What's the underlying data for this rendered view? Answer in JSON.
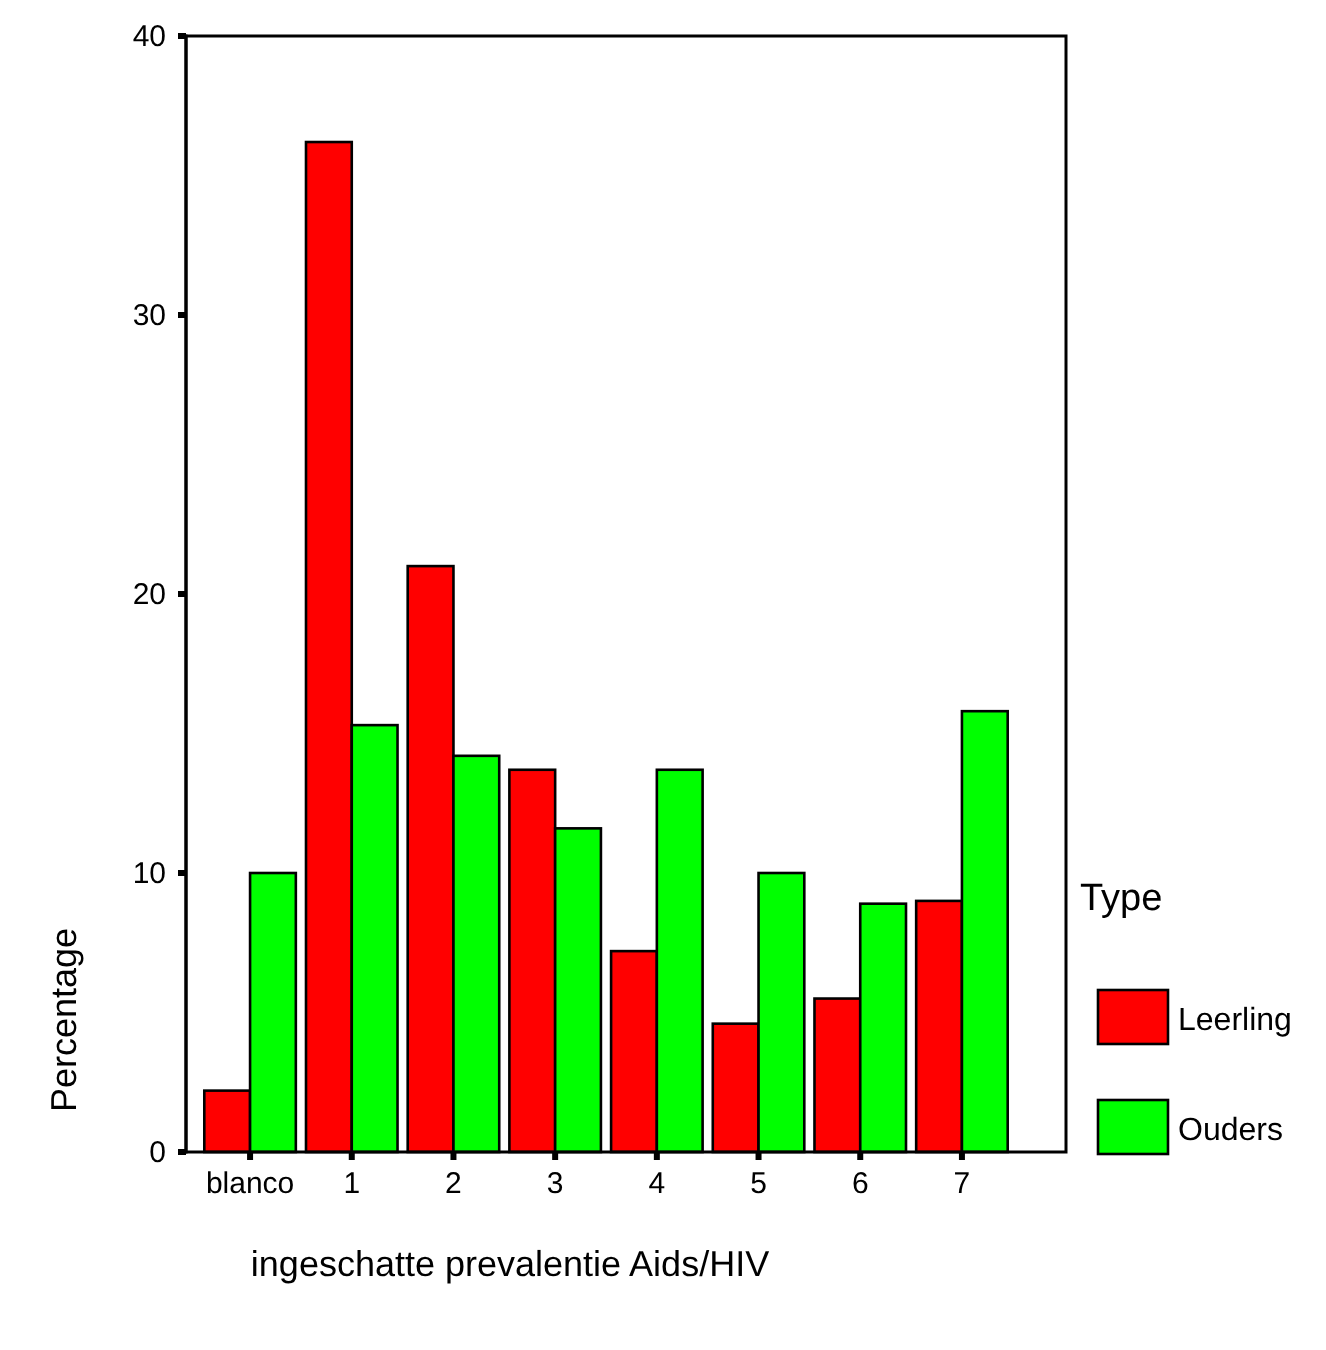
{
  "chart_data": {
    "type": "bar",
    "xlabel": "ingeschatte prevalentie Aids/HIV",
    "ylabel": "Percentage",
    "legend_title": "Type",
    "categories": [
      "blanco",
      "1",
      "2",
      "3",
      "4",
      "5",
      "6",
      "7"
    ],
    "series": [
      {
        "name": "Leerling",
        "color": "#ff0000",
        "values": [
          2.2,
          36.2,
          21.0,
          13.7,
          7.2,
          4.6,
          5.5,
          9.0
        ]
      },
      {
        "name": "Ouders",
        "color": "#00ff00",
        "values": [
          10.0,
          15.3,
          14.2,
          11.6,
          13.7,
          10.0,
          8.9,
          15.8
        ]
      }
    ],
    "ylim": [
      0,
      40
    ],
    "yticks": [
      0,
      10,
      20,
      30,
      40
    ],
    "grid": false,
    "legend": "right"
  }
}
